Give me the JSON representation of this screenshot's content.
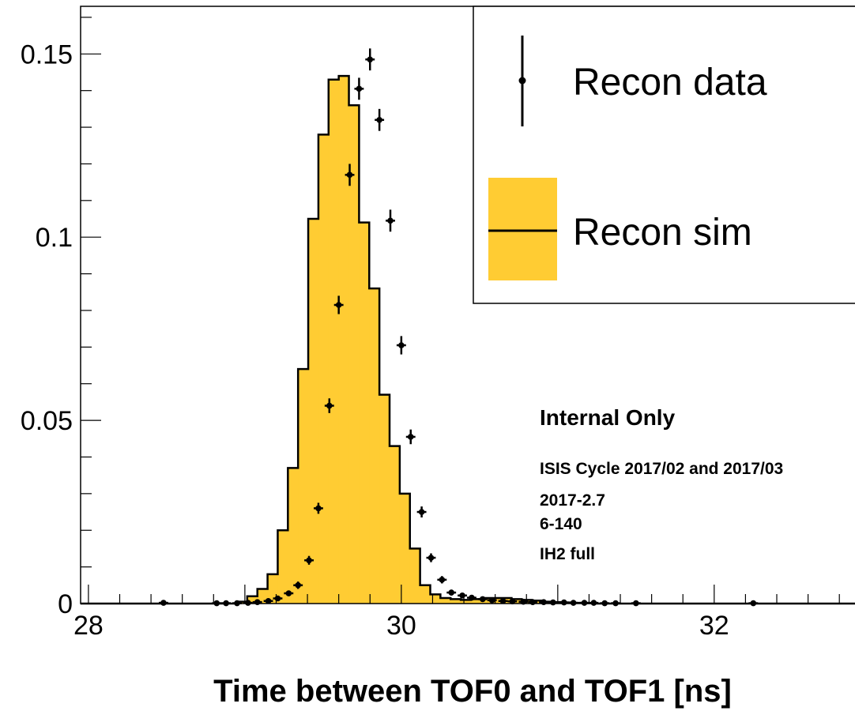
{
  "chart_data": {
    "type": "histogram",
    "xlabel": "Time between TOF0 and TOF1 [ns]",
    "ylabel": "",
    "xlim": [
      27.95,
      32.9
    ],
    "ylim": [
      0,
      0.163
    ],
    "xticks": [
      28,
      30,
      32
    ],
    "xtick_labels": [
      "28",
      "30",
      "32"
    ],
    "yticks": [
      0,
      0.05,
      0.1,
      0.15
    ],
    "ytick_labels": [
      "0",
      "0.05",
      "0.1",
      "0.15"
    ],
    "legend": {
      "placement": "top-right",
      "entries": [
        {
          "label": "Recon data",
          "style": "points"
        },
        {
          "label": "Recon sim",
          "style": "filled-histogram",
          "color": "#FFCC33"
        }
      ]
    },
    "annotations": [
      "Internal Only",
      "ISIS Cycle 2017/02 and 2017/03",
      "2017-2.7",
      "6-140",
      "IH2 full"
    ],
    "colors": {
      "sim_fill": "#FFCC33",
      "line": "#000000"
    },
    "series": [
      {
        "name": "Recon sim",
        "type": "histogram",
        "bin_width": 0.065,
        "bin_start": 28.95,
        "values": [
          0.0005,
          0.002,
          0.004,
          0.008,
          0.02,
          0.037,
          0.064,
          0.105,
          0.128,
          0.143,
          0.144,
          0.136,
          0.104,
          0.086,
          0.057,
          0.043,
          0.03,
          0.015,
          0.005,
          0.0025,
          0.0015,
          0.0012,
          0.001,
          0.0012,
          0.0015,
          0.0015,
          0.0015,
          0.0012,
          0.001,
          0.0008,
          0.0005,
          0.0004,
          0.0003,
          0.0002,
          0.0001
        ]
      },
      {
        "name": "Recon data",
        "type": "errorbars",
        "x": [
          28.48,
          28.82,
          28.88,
          28.95,
          29.02,
          29.08,
          29.15,
          29.21,
          29.28,
          29.34,
          29.41,
          29.47,
          29.54,
          29.6,
          29.67,
          29.73,
          29.8,
          29.86,
          29.93,
          30.0,
          30.06,
          30.13,
          30.19,
          30.26,
          30.32,
          30.39,
          30.45,
          30.52,
          30.58,
          30.65,
          30.71,
          30.78,
          30.84,
          30.91,
          30.97,
          31.04,
          31.1,
          31.17,
          31.23,
          31.3,
          31.37,
          31.5,
          32.25
        ],
        "y": [
          0.0002,
          0.0001,
          0.0001,
          0.0001,
          0.0002,
          0.0004,
          0.0007,
          0.0014,
          0.0028,
          0.005,
          0.0118,
          0.026,
          0.054,
          0.0815,
          0.117,
          0.1405,
          0.1485,
          0.132,
          0.1045,
          0.0705,
          0.0455,
          0.025,
          0.0125,
          0.0065,
          0.003,
          0.0022,
          0.0016,
          0.0012,
          0.0009,
          0.0007,
          0.0006,
          0.0005,
          0.0004,
          0.0004,
          0.0003,
          0.0003,
          0.0002,
          0.0002,
          0.0002,
          0.0001,
          0.0001,
          0.0001,
          0.0001
        ],
        "yerr": [
          0.0005,
          0.0005,
          0.0005,
          0.0005,
          0.0005,
          0.0005,
          0.0005,
          0.0005,
          0.0007,
          0.001,
          0.0012,
          0.0015,
          0.002,
          0.0025,
          0.003,
          0.003,
          0.003,
          0.003,
          0.003,
          0.0025,
          0.002,
          0.0015,
          0.0012,
          0.001,
          0.0008,
          0.0006,
          0.0005,
          0.0005,
          0.0005,
          0.0005,
          0.0005,
          0.0005,
          0.0005,
          0.0005,
          0.0005,
          0.0005,
          0.0005,
          0.0005,
          0.0005,
          0.0005,
          0.0005,
          0.0005,
          0.0005
        ]
      }
    ]
  }
}
